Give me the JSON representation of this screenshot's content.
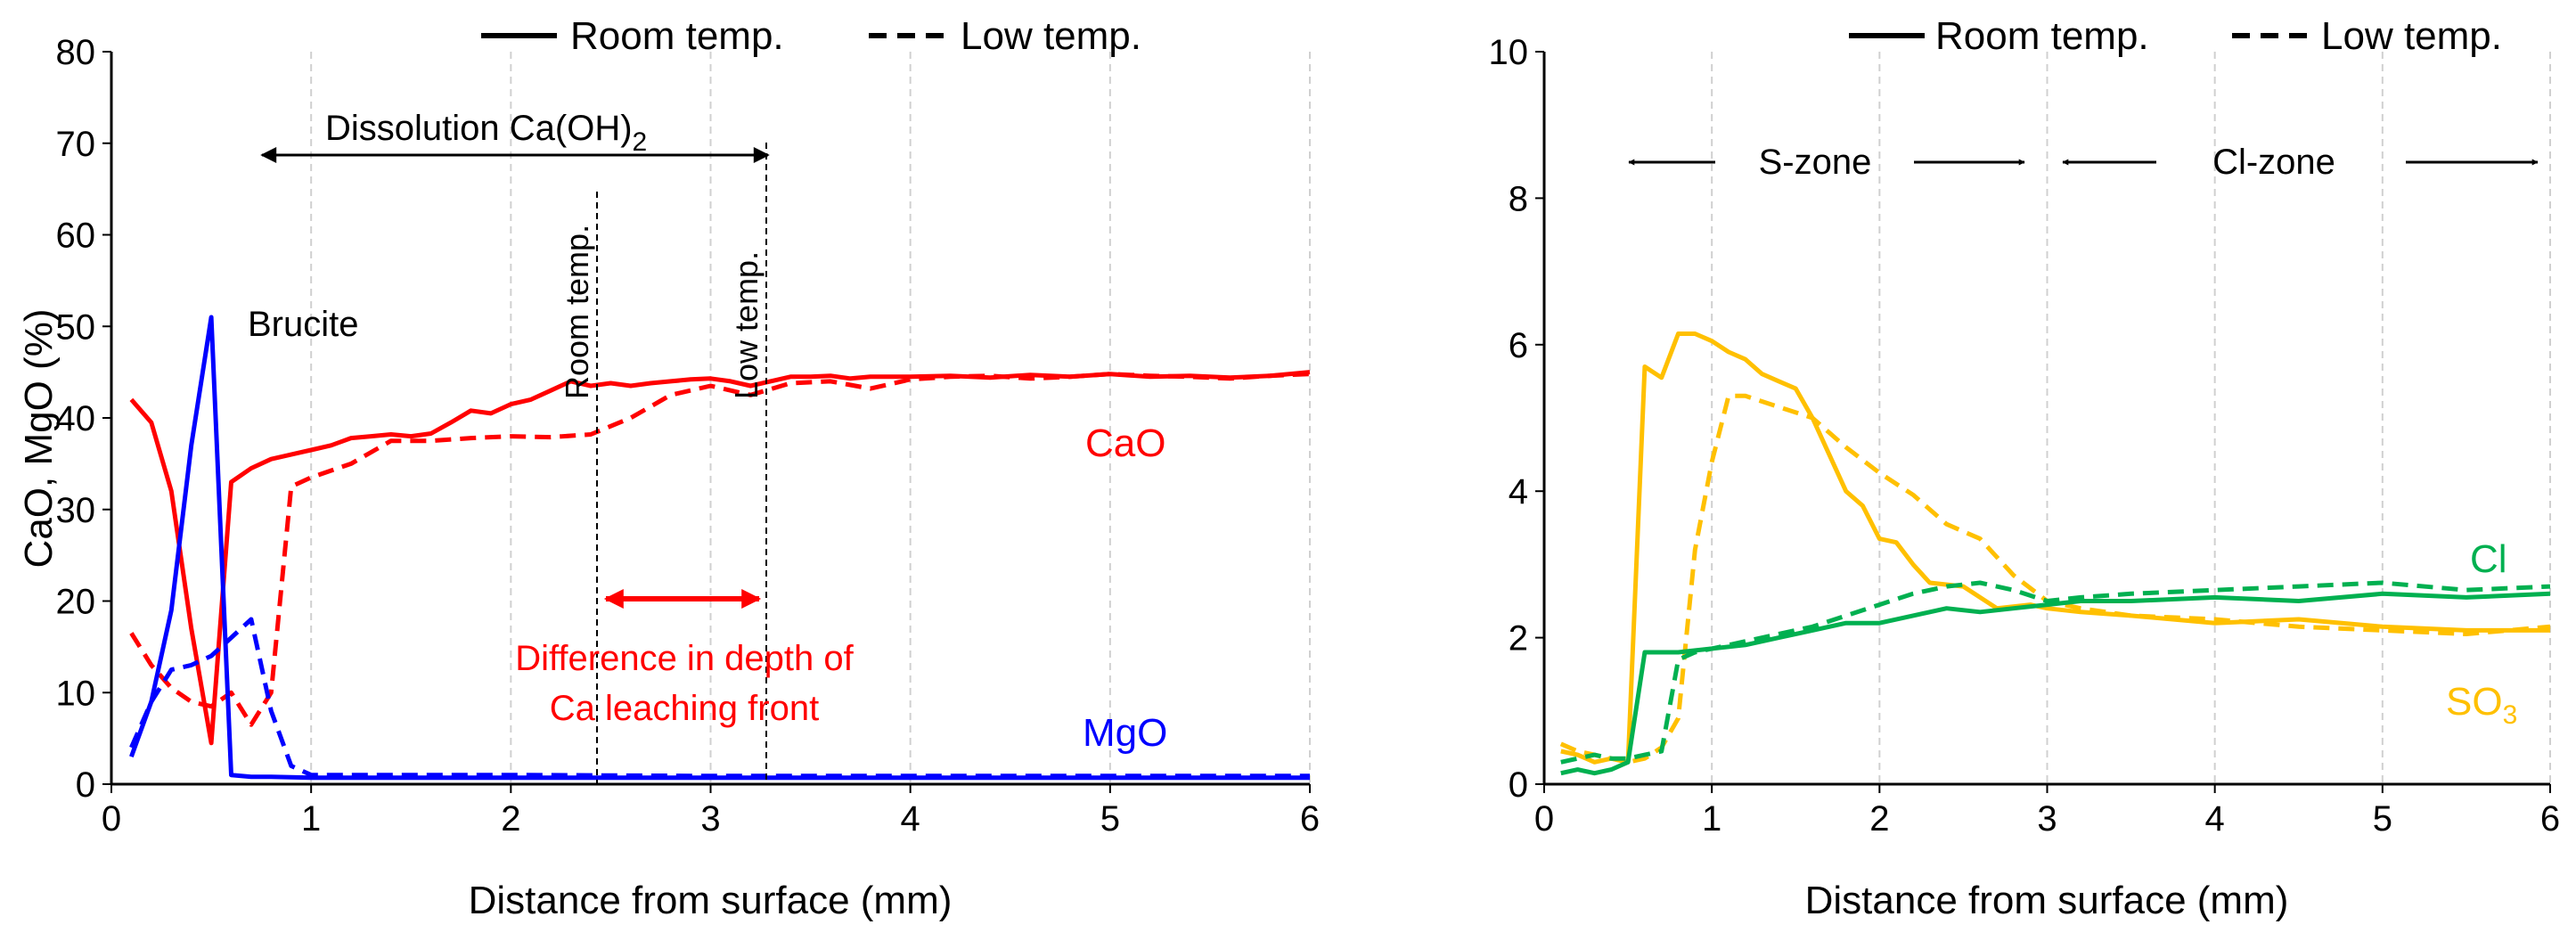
{
  "legend": {
    "solid": "Room temp.",
    "dashed": "Low temp."
  },
  "chart_data": [
    {
      "type": "line",
      "xlabel": "Distance from surface (mm)",
      "ylabel": "CaO, MgO (%)",
      "xlim": [
        0,
        6
      ],
      "ylim": [
        0,
        80
      ],
      "xticks": [
        0,
        1,
        2,
        3,
        4,
        5,
        6
      ],
      "yticks": [
        0,
        10,
        20,
        30,
        40,
        50,
        60,
        70,
        80
      ],
      "grid": "vertical dashed",
      "annotations": {
        "dissolution_prefix": "Dissolution Ca(OH)",
        "dissolution_sub": "2",
        "brucite": "Brucite",
        "room_marker": "Room temp.",
        "low_marker": "Low temp.",
        "difference_line1": "Difference in depth of",
        "difference_line2": "Ca leaching  front",
        "dissolution_range": [
          0.3,
          3.3
        ],
        "marker_lines": [
          2.3,
          3.3
        ],
        "difference_range": [
          2.35,
          3.3
        ]
      },
      "series": [
        {
          "name": "CaO",
          "condition": "Room temp.",
          "style": "solid",
          "color": "#ff0000",
          "x": [
            0.1,
            0.2,
            0.3,
            0.4,
            0.5,
            0.6,
            0.7,
            0.8,
            0.9,
            1.0,
            1.1,
            1.2,
            1.3,
            1.4,
            1.5,
            1.6,
            1.7,
            1.8,
            1.9,
            2.0,
            2.1,
            2.2,
            2.3,
            2.4,
            2.5,
            2.6,
            2.7,
            2.8,
            2.9,
            3.0,
            3.1,
            3.2,
            3.3,
            3.4,
            3.5,
            3.6,
            3.7,
            3.8,
            3.9,
            4.0,
            4.2,
            4.4,
            4.6,
            4.8,
            5.0,
            5.2,
            5.4,
            5.6,
            5.8,
            6.0
          ],
          "y": [
            42,
            39.5,
            32,
            17,
            4.5,
            33,
            34.5,
            35.5,
            36,
            36.5,
            37,
            37.8,
            38,
            38.2,
            38,
            38.3,
            39.5,
            40.8,
            40.5,
            41.5,
            42,
            43,
            44,
            43.5,
            43.8,
            43.5,
            43.8,
            44,
            44.2,
            44.3,
            44,
            43.5,
            44,
            44.5,
            44.5,
            44.6,
            44.3,
            44.5,
            44.5,
            44.5,
            44.6,
            44.4,
            44.7,
            44.5,
            44.8,
            44.5,
            44.6,
            44.4,
            44.6,
            45
          ]
        },
        {
          "name": "CaO",
          "condition": "Low temp.",
          "style": "dashed",
          "color": "#ff0000",
          "x": [
            0.1,
            0.2,
            0.3,
            0.4,
            0.5,
            0.6,
            0.7,
            0.8,
            0.9,
            1.0,
            1.2,
            1.4,
            1.6,
            1.8,
            2.0,
            2.2,
            2.4,
            2.6,
            2.8,
            3.0,
            3.2,
            3.4,
            3.6,
            3.8,
            4.0,
            4.2,
            4.4,
            4.6,
            4.8,
            5.0,
            5.2,
            5.4,
            5.6,
            5.8,
            6.0
          ],
          "y": [
            16.5,
            13,
            10.5,
            9,
            8.5,
            10,
            6.5,
            10,
            32.5,
            33.5,
            35,
            37.5,
            37.5,
            37.8,
            38,
            37.9,
            38.2,
            40,
            42.5,
            43.5,
            42.5,
            43.8,
            44,
            43.2,
            44.2,
            44.5,
            44.6,
            44.3,
            44.5,
            44.8,
            44.6,
            44.5,
            44.3,
            44.6,
            44.8
          ]
        },
        {
          "name": "MgO",
          "condition": "Room temp.",
          "style": "solid",
          "color": "#0000ff",
          "x": [
            0.1,
            0.2,
            0.3,
            0.4,
            0.5,
            0.6,
            0.7,
            0.8,
            1.0,
            2.0,
            3.0,
            4.0,
            5.0,
            6.0
          ],
          "y": [
            3,
            9,
            19,
            37,
            51,
            1,
            0.8,
            0.8,
            0.7,
            0.7,
            0.7,
            0.7,
            0.7,
            0.7
          ]
        },
        {
          "name": "MgO",
          "condition": "Low temp.",
          "style": "dashed",
          "color": "#0000ff",
          "x": [
            0.1,
            0.2,
            0.3,
            0.4,
            0.5,
            0.6,
            0.7,
            0.8,
            0.9,
            1.0,
            1.5,
            2.0,
            3.0,
            4.0,
            5.0,
            6.0
          ],
          "y": [
            4,
            9,
            12.5,
            13,
            14,
            16,
            18,
            8,
            2,
            1,
            1,
            1,
            0.9,
            0.9,
            0.9,
            0.9
          ]
        }
      ]
    },
    {
      "type": "line",
      "xlabel": "Distance from surface (mm)",
      "ylabel": "",
      "xlim": [
        0,
        6
      ],
      "ylim": [
        0,
        10
      ],
      "xticks": [
        0,
        1,
        2,
        3,
        4,
        5,
        6
      ],
      "yticks": [
        0,
        2,
        4,
        6,
        8,
        10
      ],
      "grid": "vertical dashed",
      "annotations": {
        "s_zone": "S-zone",
        "cl_zone": "Cl-zone",
        "s_zone_range": [
          0.5,
          2.85
        ],
        "cl_zone_range": [
          3.05,
          5.95
        ]
      },
      "series": [
        {
          "name": "SO3",
          "label_main": "SO",
          "label_sub": "3",
          "condition": "Room temp.",
          "style": "solid",
          "color": "#ffc000",
          "x": [
            0.1,
            0.2,
            0.3,
            0.4,
            0.5,
            0.6,
            0.7,
            0.8,
            0.9,
            1.0,
            1.1,
            1.2,
            1.3,
            1.4,
            1.5,
            1.6,
            1.7,
            1.8,
            1.9,
            2.0,
            2.1,
            2.2,
            2.3,
            2.5,
            2.7,
            2.9,
            3.0,
            3.2,
            3.5,
            4.0,
            4.5,
            5.0,
            5.5,
            6.0
          ],
          "y": [
            0.45,
            0.4,
            0.3,
            0.35,
            0.3,
            5.7,
            5.55,
            6.15,
            6.15,
            6.05,
            5.9,
            5.8,
            5.6,
            5.5,
            5.4,
            5.0,
            4.5,
            4.0,
            3.8,
            3.35,
            3.3,
            3.0,
            2.75,
            2.7,
            2.4,
            2.45,
            2.4,
            2.35,
            2.3,
            2.2,
            2.25,
            2.15,
            2.1,
            2.1
          ]
        },
        {
          "name": "SO3",
          "label_main": "SO",
          "label_sub": "3",
          "condition": "Low temp.",
          "style": "dashed",
          "color": "#ffc000",
          "x": [
            0.1,
            0.2,
            0.3,
            0.4,
            0.5,
            0.6,
            0.7,
            0.8,
            0.9,
            1.0,
            1.1,
            1.2,
            1.4,
            1.6,
            1.8,
            2.0,
            2.2,
            2.4,
            2.6,
            2.8,
            3.0,
            3.2,
            3.5,
            4.0,
            4.5,
            5.0,
            5.5,
            6.0
          ],
          "y": [
            0.55,
            0.45,
            0.4,
            0.35,
            0.3,
            0.35,
            0.5,
            0.9,
            3.2,
            4.4,
            5.3,
            5.3,
            5.15,
            5.0,
            4.6,
            4.25,
            3.95,
            3.55,
            3.35,
            2.85,
            2.5,
            2.4,
            2.3,
            2.25,
            2.15,
            2.1,
            2.05,
            2.15
          ]
        },
        {
          "name": "Cl",
          "condition": "Room temp.",
          "style": "solid",
          "color": "#00b050",
          "x": [
            0.1,
            0.2,
            0.3,
            0.4,
            0.5,
            0.6,
            0.7,
            0.8,
            1.0,
            1.2,
            1.4,
            1.6,
            1.8,
            2.0,
            2.2,
            2.4,
            2.6,
            2.8,
            3.0,
            3.2,
            3.5,
            4.0,
            4.5,
            5.0,
            5.5,
            6.0
          ],
          "y": [
            0.15,
            0.2,
            0.15,
            0.2,
            0.3,
            1.8,
            1.8,
            1.8,
            1.85,
            1.9,
            2.0,
            2.1,
            2.2,
            2.2,
            2.3,
            2.4,
            2.35,
            2.4,
            2.45,
            2.5,
            2.5,
            2.55,
            2.5,
            2.6,
            2.55,
            2.6
          ]
        },
        {
          "name": "Cl",
          "condition": "Low temp.",
          "style": "dashed",
          "color": "#00b050",
          "x": [
            0.1,
            0.2,
            0.3,
            0.4,
            0.5,
            0.6,
            0.7,
            0.8,
            0.9,
            1.0,
            1.2,
            1.4,
            1.6,
            1.8,
            2.0,
            2.2,
            2.4,
            2.6,
            2.8,
            3.0,
            3.2,
            3.5,
            4.0,
            4.5,
            5.0,
            5.5,
            6.0
          ],
          "y": [
            0.3,
            0.35,
            0.4,
            0.35,
            0.35,
            0.4,
            0.45,
            1.7,
            1.8,
            1.85,
            1.95,
            2.05,
            2.15,
            2.3,
            2.45,
            2.6,
            2.7,
            2.75,
            2.65,
            2.5,
            2.55,
            2.6,
            2.65,
            2.7,
            2.75,
            2.65,
            2.7
          ]
        }
      ]
    }
  ]
}
